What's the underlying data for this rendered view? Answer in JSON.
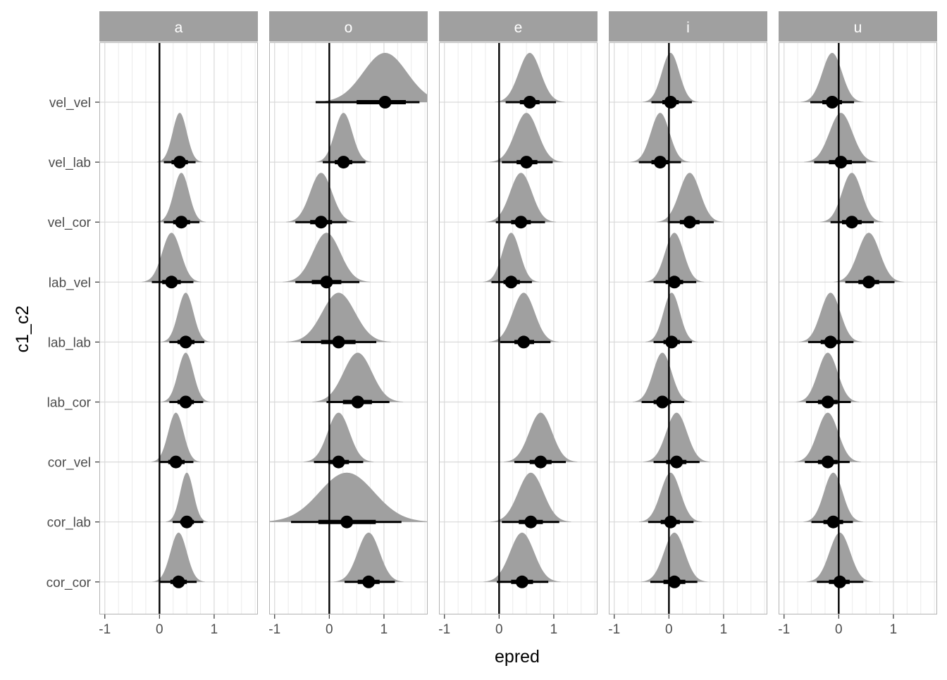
{
  "chart_data": {
    "type": "interval-density",
    "xlabel": "epred",
    "ylabel": "c1_c2",
    "xlim": [
      -1.1,
      1.8
    ],
    "x_ticks": [
      -1,
      0,
      1
    ],
    "x_tick_labels": [
      "-1",
      "0",
      "1"
    ],
    "reference_line_x": 0,
    "categories": [
      "vel_vel",
      "vel_lab",
      "vel_cor",
      "lab_vel",
      "lab_lab",
      "lab_cor",
      "cor_vel",
      "cor_lab",
      "cor_cor"
    ],
    "colors": {
      "density": "#a0a0a0",
      "strip": "#a0a0a0",
      "grid_major": "#d9d9d9",
      "grid_minor": "#ebebeb",
      "interval": "#000000",
      "panel_border": "#b3b3b3"
    },
    "facets": [
      {
        "label": "a",
        "points": [
          null,
          {
            "median": 0.37,
            "q66": [
              0.22,
              0.52
            ],
            "q95": [
              0.08,
              0.66
            ],
            "sd": 0.13
          },
          {
            "median": 0.4,
            "q66": [
              0.25,
              0.56
            ],
            "q95": [
              0.08,
              0.73
            ],
            "sd": 0.14
          },
          {
            "median": 0.22,
            "q66": [
              0.05,
              0.39
            ],
            "q95": [
              -0.14,
              0.62
            ],
            "sd": 0.17
          },
          {
            "median": 0.48,
            "q66": [
              0.33,
              0.64
            ],
            "q95": [
              0.18,
              0.82
            ],
            "sd": 0.14
          },
          {
            "median": 0.48,
            "q66": [
              0.33,
              0.63
            ],
            "q95": [
              0.18,
              0.8
            ],
            "sd": 0.14
          },
          {
            "median": 0.3,
            "q66": [
              0.16,
              0.46
            ],
            "q95": [
              0.0,
              0.62
            ],
            "sd": 0.14
          },
          {
            "median": 0.5,
            "q66": [
              0.38,
              0.63
            ],
            "q95": [
              0.24,
              0.8
            ],
            "sd": 0.12
          },
          {
            "median": 0.35,
            "q66": [
              0.2,
              0.5
            ],
            "q95": [
              0.0,
              0.68
            ],
            "sd": 0.15
          }
        ]
      },
      {
        "label": "o",
        "points": [
          {
            "median": 1.02,
            "q66": [
              0.5,
              1.4
            ],
            "q95": [
              -0.25,
              1.65
            ],
            "sd": 0.4
          },
          {
            "median": 0.26,
            "q66": [
              0.1,
              0.42
            ],
            "q95": [
              -0.12,
              0.66
            ],
            "sd": 0.16
          },
          {
            "median": -0.15,
            "q66": [
              -0.35,
              0.05
            ],
            "q95": [
              -0.62,
              0.32
            ],
            "sd": 0.2
          },
          {
            "median": -0.05,
            "q66": [
              -0.32,
              0.22
            ],
            "q95": [
              -0.62,
              0.55
            ],
            "sd": 0.25
          },
          {
            "median": 0.17,
            "q66": [
              -0.15,
              0.48
            ],
            "q95": [
              -0.52,
              0.86
            ],
            "sd": 0.3
          },
          {
            "median": 0.52,
            "q66": [
              0.25,
              0.78
            ],
            "q95": [
              -0.05,
              1.1
            ],
            "sd": 0.26
          },
          {
            "median": 0.17,
            "q66": [
              -0.02,
              0.36
            ],
            "q95": [
              -0.28,
              0.62
            ],
            "sd": 0.2
          },
          {
            "median": 0.32,
            "q66": [
              -0.2,
              0.85
            ],
            "q95": [
              -0.7,
              1.32
            ],
            "sd": 0.5
          },
          {
            "median": 0.72,
            "q66": [
              0.52,
              0.92
            ],
            "q95": [
              0.28,
              1.2
            ],
            "sd": 0.2
          }
        ]
      },
      {
        "label": "e",
        "points": [
          {
            "median": 0.56,
            "q66": [
              0.38,
              0.74
            ],
            "q95": [
              0.12,
              1.04
            ],
            "sd": 0.2
          },
          {
            "median": 0.5,
            "q66": [
              0.32,
              0.7
            ],
            "q95": [
              0.05,
              0.98
            ],
            "sd": 0.21
          },
          {
            "median": 0.4,
            "q66": [
              0.22,
              0.58
            ],
            "q95": [
              -0.06,
              0.84
            ],
            "sd": 0.2
          },
          {
            "median": 0.22,
            "q66": [
              0.08,
              0.38
            ],
            "q95": [
              -0.14,
              0.6
            ],
            "sd": 0.16
          },
          {
            "median": 0.45,
            "q66": [
              0.28,
              0.64
            ],
            "q95": [
              0.02,
              0.94
            ],
            "sd": 0.2
          },
          null,
          {
            "median": 0.76,
            "q66": [
              0.56,
              0.96
            ],
            "q95": [
              0.28,
              1.22
            ],
            "sd": 0.21
          },
          {
            "median": 0.58,
            "q66": [
              0.36,
              0.8
            ],
            "q95": [
              0.05,
              1.1
            ],
            "sd": 0.23
          },
          {
            "median": 0.42,
            "q66": [
              0.22,
              0.62
            ],
            "q95": [
              -0.04,
              0.9
            ],
            "sd": 0.22
          }
        ]
      },
      {
        "label": "i",
        "points": [
          {
            "median": 0.03,
            "q66": [
              -0.12,
              0.18
            ],
            "q95": [
              -0.32,
              0.42
            ],
            "sd": 0.16
          },
          {
            "median": -0.16,
            "q66": [
              -0.32,
              0.0
            ],
            "q95": [
              -0.55,
              0.22
            ],
            "sd": 0.17
          },
          {
            "median": 0.38,
            "q66": [
              0.2,
              0.56
            ],
            "q95": [
              -0.02,
              0.82
            ],
            "sd": 0.19
          },
          {
            "median": 0.1,
            "q66": [
              -0.06,
              0.26
            ],
            "q95": [
              -0.28,
              0.5
            ],
            "sd": 0.17
          },
          {
            "median": 0.05,
            "q66": [
              -0.1,
              0.2
            ],
            "q95": [
              -0.28,
              0.42
            ],
            "sd": 0.15
          },
          {
            "median": -0.12,
            "q66": [
              -0.28,
              0.04
            ],
            "q95": [
              -0.5,
              0.28
            ],
            "sd": 0.17
          },
          {
            "median": 0.14,
            "q66": [
              -0.05,
              0.32
            ],
            "q95": [
              -0.28,
              0.56
            ],
            "sd": 0.19
          },
          {
            "median": 0.03,
            "q66": [
              -0.15,
              0.2
            ],
            "q95": [
              -0.38,
              0.45
            ],
            "sd": 0.18
          },
          {
            "median": 0.1,
            "q66": [
              -0.1,
              0.3
            ],
            "q95": [
              -0.34,
              0.52
            ],
            "sd": 0.19
          }
        ]
      },
      {
        "label": "u",
        "points": [
          {
            "median": -0.12,
            "q66": [
              -0.3,
              0.06
            ],
            "q95": [
              -0.52,
              0.28
            ],
            "sd": 0.18
          },
          {
            "median": 0.04,
            "q66": [
              -0.18,
              0.24
            ],
            "q95": [
              -0.45,
              0.5
            ],
            "sd": 0.21
          },
          {
            "median": 0.24,
            "q66": [
              0.06,
              0.42
            ],
            "q95": [
              -0.15,
              0.64
            ],
            "sd": 0.18
          },
          {
            "median": 0.55,
            "q66": [
              0.36,
              0.74
            ],
            "q95": [
              0.12,
              1.02
            ],
            "sd": 0.2
          },
          {
            "median": -0.15,
            "q66": [
              -0.33,
              0.03
            ],
            "q95": [
              -0.56,
              0.27
            ],
            "sd": 0.18
          },
          {
            "median": -0.2,
            "q66": [
              -0.38,
              -0.02
            ],
            "q95": [
              -0.6,
              0.22
            ],
            "sd": 0.18
          },
          {
            "median": -0.2,
            "q66": [
              -0.38,
              -0.02
            ],
            "q95": [
              -0.62,
              0.2
            ],
            "sd": 0.19
          },
          {
            "median": -0.1,
            "q66": [
              -0.28,
              0.08
            ],
            "q95": [
              -0.5,
              0.26
            ],
            "sd": 0.17
          },
          {
            "median": 0.02,
            "q66": [
              -0.18,
              0.2
            ],
            "q95": [
              -0.4,
              0.45
            ],
            "sd": 0.19
          }
        ]
      }
    ]
  }
}
